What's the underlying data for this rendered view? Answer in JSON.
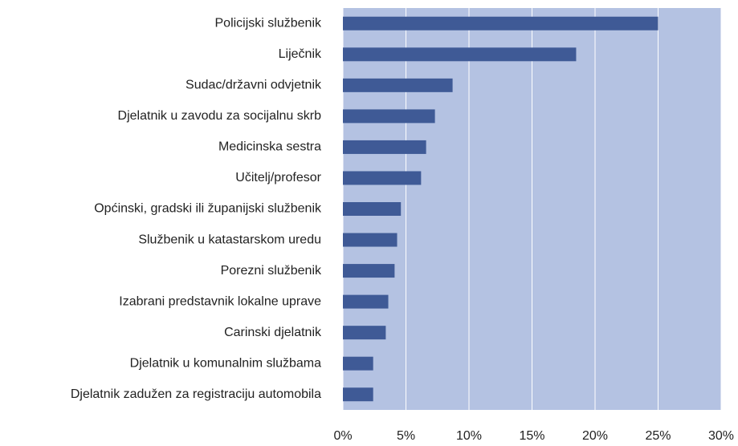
{
  "chart_data": {
    "type": "bar",
    "orientation": "horizontal",
    "categories": [
      "Policijski službenik",
      "Liječnik",
      "Sudac/državni odvjetnik",
      "Djelatnik u zavodu za socijalnu skrb",
      "Medicinska sestra",
      "Učitelj/profesor",
      "Općinski, gradski ili županijski službenik",
      "Službenik u katastarskom uredu",
      "Porezni službenik",
      "Izabrani predstavnik lokalne uprave",
      "Carinski djelatnik",
      "Djelatnik u komunalnim službama",
      "Djelatnik zadužen za registraciju automobila"
    ],
    "values": [
      25.0,
      18.5,
      8.7,
      7.3,
      6.6,
      6.2,
      4.6,
      4.3,
      4.1,
      3.6,
      3.4,
      2.4,
      2.4
    ],
    "color": "#3f5a96",
    "background": "#b4c2e2",
    "xlim": [
      0,
      30
    ],
    "xticks": [
      {
        "value": 0,
        "label": "0%"
      },
      {
        "value": 5,
        "label": "5%"
      },
      {
        "value": 10,
        "label": "10%"
      },
      {
        "value": 15,
        "label": "15%"
      },
      {
        "value": 20,
        "label": "20%"
      },
      {
        "value": 25,
        "label": "25%"
      },
      {
        "value": 30,
        "label": "30%"
      }
    ],
    "grid": true
  }
}
